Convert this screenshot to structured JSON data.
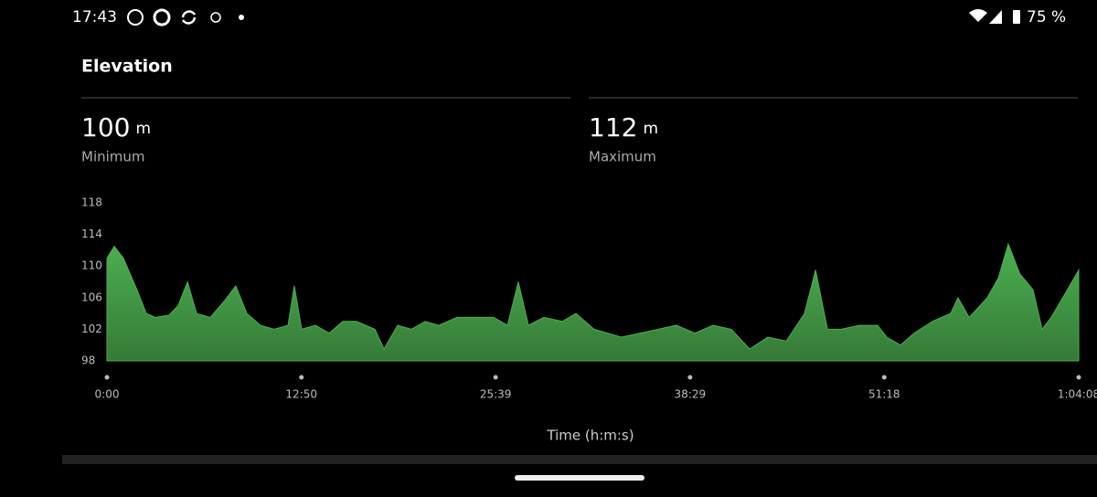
{
  "status_bar": {
    "time": "17:43",
    "battery": "75 %"
  },
  "header": {
    "title": "Elevation"
  },
  "stats": [
    {
      "value": "100",
      "unit": "m",
      "label": "Minimum"
    },
    {
      "value": "112",
      "unit": "m",
      "label": "Maximum"
    }
  ],
  "chart_data": {
    "type": "area",
    "color": "#4caf50",
    "xlabel": "Time (h:m:s)",
    "x": [
      0,
      29,
      65,
      119,
      156,
      192,
      246,
      282,
      319,
      355,
      409,
      463,
      510,
      554,
      608,
      662,
      717,
      742,
      771,
      825,
      880,
      934,
      988,
      1061,
      1097,
      1151,
      1205,
      1260,
      1314,
      1386,
      1459,
      1531,
      1586,
      1629,
      1669,
      1730,
      1803,
      1857,
      1929,
      2038,
      2110,
      2183,
      2255,
      2328,
      2400,
      2472,
      2545,
      2617,
      2690,
      2762,
      2806,
      2853,
      2907,
      2979,
      3052,
      3088,
      3142,
      3196,
      3269,
      3341,
      3370,
      3414,
      3486,
      3530,
      3569,
      3615,
      3667,
      3703,
      3739,
      3794,
      3848
    ],
    "values": [
      111,
      112.5,
      111,
      107,
      104,
      103.5,
      103.8,
      105,
      108,
      104,
      103.5,
      105.5,
      107.5,
      104,
      102.5,
      102,
      102.5,
      107.5,
      102,
      102.5,
      101.5,
      103,
      103,
      102,
      99.5,
      102.5,
      102,
      103,
      102.5,
      103.5,
      103.5,
      103.5,
      102.5,
      108,
      102.5,
      103.5,
      103,
      104,
      102,
      101,
      101.5,
      102,
      102.5,
      101.5,
      102.5,
      102,
      99.5,
      101,
      100.5,
      104,
      109.5,
      102,
      102,
      102.5,
      102.5,
      101,
      100,
      101.5,
      103,
      104,
      106,
      103.5,
      106,
      108.5,
      112.8,
      109,
      107,
      102,
      103.5,
      106.5,
      109.5
    ],
    "xlim": [
      0,
      3848
    ],
    "ylim": [
      98,
      118
    ],
    "yticks": [
      98,
      102,
      106,
      110,
      114,
      118
    ],
    "xticks": [
      {
        "value": 0,
        "label": "0:00"
      },
      {
        "value": 770,
        "label": "12:50"
      },
      {
        "value": 1539,
        "label": "25:39"
      },
      {
        "value": 2309,
        "label": "38:29"
      },
      {
        "value": 3078,
        "label": "51:18"
      },
      {
        "value": 3848,
        "label": "1:04:08"
      }
    ]
  }
}
